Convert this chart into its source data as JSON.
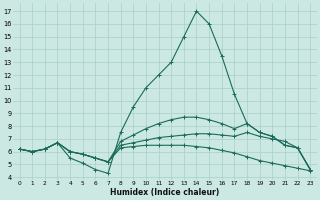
{
  "xlabel": "Humidex (Indice chaleur)",
  "background_color": "#cce8e3",
  "grid_color": "#aacfc8",
  "line_color": "#1a6b5a",
  "xlim": [
    -0.5,
    23.5
  ],
  "ylim": [
    3.8,
    17.6
  ],
  "yticks": [
    4,
    5,
    6,
    7,
    8,
    9,
    10,
    11,
    12,
    13,
    14,
    15,
    16,
    17
  ],
  "xticks": [
    0,
    1,
    2,
    3,
    4,
    5,
    6,
    7,
    8,
    9,
    10,
    11,
    12,
    13,
    14,
    15,
    16,
    17,
    18,
    19,
    20,
    21,
    22,
    23
  ],
  "lines": [
    {
      "x": [
        0,
        1,
        2,
        3,
        4,
        5,
        6,
        7,
        8,
        9,
        10,
        11,
        12,
        13,
        14,
        15,
        16,
        17,
        18,
        19,
        20,
        21,
        22,
        23
      ],
      "y": [
        6.2,
        6.0,
        6.2,
        6.7,
        5.5,
        5.1,
        4.6,
        4.3,
        7.5,
        9.5,
        11.0,
        12.0,
        13.0,
        15.0,
        17.0,
        16.0,
        13.5,
        10.5,
        8.2,
        7.5,
        7.2,
        6.5,
        6.3,
        4.6
      ]
    },
    {
      "x": [
        0,
        1,
        2,
        3,
        4,
        5,
        6,
        7,
        8,
        9,
        10,
        11,
        12,
        13,
        14,
        15,
        16,
        17,
        18,
        19,
        20,
        21,
        22,
        23
      ],
      "y": [
        6.2,
        6.0,
        6.2,
        6.7,
        6.0,
        5.8,
        5.5,
        5.2,
        6.8,
        7.3,
        7.8,
        8.2,
        8.5,
        8.7,
        8.7,
        8.5,
        8.2,
        7.8,
        8.2,
        7.5,
        7.2,
        6.5,
        6.3,
        4.6
      ]
    },
    {
      "x": [
        0,
        1,
        2,
        3,
        4,
        5,
        6,
        7,
        8,
        9,
        10,
        11,
        12,
        13,
        14,
        15,
        16,
        17,
        18,
        19,
        20,
        21,
        22,
        23
      ],
      "y": [
        6.2,
        6.0,
        6.2,
        6.7,
        6.0,
        5.8,
        5.5,
        5.2,
        6.5,
        6.7,
        6.9,
        7.1,
        7.2,
        7.3,
        7.4,
        7.4,
        7.3,
        7.2,
        7.5,
        7.2,
        7.0,
        6.8,
        6.3,
        4.6
      ]
    },
    {
      "x": [
        0,
        1,
        2,
        3,
        4,
        5,
        6,
        7,
        8,
        9,
        10,
        11,
        12,
        13,
        14,
        15,
        16,
        17,
        18,
        19,
        20,
        21,
        22,
        23
      ],
      "y": [
        6.2,
        6.0,
        6.2,
        6.7,
        6.0,
        5.8,
        5.5,
        5.2,
        6.3,
        6.4,
        6.5,
        6.5,
        6.5,
        6.5,
        6.4,
        6.3,
        6.1,
        5.9,
        5.6,
        5.3,
        5.1,
        4.9,
        4.7,
        4.5
      ]
    }
  ]
}
